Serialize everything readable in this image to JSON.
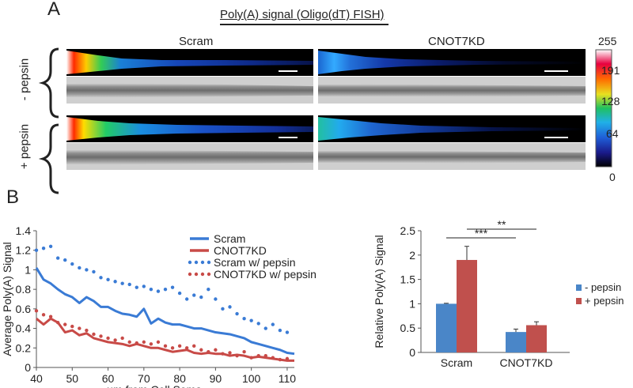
{
  "panel_a": {
    "letter": "A",
    "title": "Poly(A) signal (Oligo(dT) FISH)",
    "columns": [
      "Scram",
      "CNOT7KD"
    ],
    "rows": [
      "- pepsin",
      "+ pepsin"
    ],
    "colorbar_ticks": [
      "255",
      "191",
      "128",
      "64",
      "0"
    ]
  },
  "panel_b": {
    "letter": "B"
  },
  "chart_data": [
    {
      "type": "line",
      "title": "",
      "xlabel": "µm from Cell Soma",
      "ylabel": "Average Poly(A) Signal",
      "xlim": [
        40,
        112
      ],
      "ylim": [
        0,
        1.4
      ],
      "xticks": [
        "40",
        "50",
        "60",
        "70",
        "80",
        "90",
        "100",
        "110"
      ],
      "yticks": [
        "0",
        "0.2",
        "0.4",
        "0.6",
        "0.8",
        "1",
        "1.2",
        "1.4"
      ],
      "legend_position": "top-right",
      "series": [
        {
          "name": "Scram",
          "style": "solid",
          "color": "#3a7bd5",
          "x": [
            40,
            42,
            44,
            46,
            48,
            50,
            52,
            54,
            56,
            58,
            60,
            62,
            64,
            66,
            68,
            70,
            72,
            74,
            76,
            78,
            80,
            82,
            84,
            86,
            88,
            90,
            92,
            94,
            96,
            98,
            100,
            102,
            104,
            106,
            108,
            110,
            112
          ],
          "y": [
            1.02,
            0.9,
            0.86,
            0.8,
            0.75,
            0.72,
            0.66,
            0.72,
            0.68,
            0.62,
            0.62,
            0.58,
            0.55,
            0.54,
            0.52,
            0.6,
            0.45,
            0.5,
            0.46,
            0.44,
            0.44,
            0.42,
            0.4,
            0.4,
            0.38,
            0.36,
            0.35,
            0.34,
            0.32,
            0.3,
            0.26,
            0.24,
            0.22,
            0.2,
            0.18,
            0.15,
            0.14
          ]
        },
        {
          "name": "CNOT7KD",
          "style": "solid",
          "color": "#c84a47",
          "x": [
            40,
            42,
            44,
            46,
            48,
            50,
            52,
            54,
            56,
            58,
            60,
            62,
            64,
            66,
            68,
            70,
            72,
            74,
            76,
            78,
            80,
            82,
            84,
            86,
            88,
            90,
            92,
            94,
            96,
            98,
            100,
            102,
            104,
            106,
            108,
            110,
            112
          ],
          "y": [
            0.5,
            0.44,
            0.5,
            0.46,
            0.36,
            0.38,
            0.33,
            0.35,
            0.3,
            0.28,
            0.26,
            0.25,
            0.24,
            0.22,
            0.24,
            0.22,
            0.2,
            0.2,
            0.18,
            0.16,
            0.17,
            0.18,
            0.15,
            0.14,
            0.15,
            0.14,
            0.14,
            0.12,
            0.13,
            0.12,
            0.1,
            0.11,
            0.1,
            0.09,
            0.08,
            0.07,
            0.07
          ]
        },
        {
          "name": "Scram w/ pepsin",
          "style": "dotted",
          "color": "#3a7bd5",
          "x": [
            40,
            42,
            44,
            46,
            48,
            50,
            52,
            54,
            56,
            58,
            60,
            62,
            64,
            66,
            68,
            70,
            72,
            74,
            76,
            78,
            80,
            82,
            84,
            86,
            88,
            90,
            92,
            94,
            96,
            98,
            100,
            102,
            104,
            106,
            108,
            110
          ],
          "y": [
            1.2,
            1.22,
            1.24,
            1.12,
            1.1,
            1.06,
            1.02,
            1.0,
            0.98,
            0.92,
            0.9,
            0.88,
            0.86,
            0.85,
            0.82,
            0.83,
            0.8,
            0.78,
            0.8,
            0.82,
            0.76,
            0.7,
            0.74,
            0.72,
            0.8,
            0.7,
            0.6,
            0.62,
            0.55,
            0.5,
            0.48,
            0.45,
            0.4,
            0.44,
            0.38,
            0.36
          ]
        },
        {
          "name": "CNOT7KD w/ pepsin",
          "style": "dotted",
          "color": "#c84a47",
          "x": [
            40,
            42,
            44,
            46,
            48,
            50,
            52,
            54,
            56,
            58,
            60,
            62,
            64,
            66,
            68,
            70,
            72,
            74,
            76,
            78,
            80,
            82,
            84,
            86,
            88,
            90,
            92,
            94,
            96,
            98,
            100,
            102,
            104,
            106,
            108,
            110
          ],
          "y": [
            0.58,
            0.54,
            0.52,
            0.46,
            0.44,
            0.42,
            0.4,
            0.38,
            0.34,
            0.32,
            0.3,
            0.28,
            0.3,
            0.26,
            0.25,
            0.26,
            0.24,
            0.26,
            0.22,
            0.2,
            0.22,
            0.2,
            0.22,
            0.18,
            0.16,
            0.18,
            0.14,
            0.15,
            0.12,
            0.16,
            0.1,
            0.12,
            0.12,
            0.1,
            0.08,
            0.09
          ]
        }
      ]
    },
    {
      "type": "bar",
      "title": "",
      "xlabel": "",
      "ylabel": "Relative Poly(A) Signal",
      "categories": [
        "Scram",
        "CNOT7KD"
      ],
      "ylim": [
        0,
        2.5
      ],
      "yticks": [
        "0",
        "0.5",
        "1",
        "1.5",
        "2",
        "2.5"
      ],
      "legend_position": "right",
      "series": [
        {
          "name": "- pepsin",
          "color": "#4a86c8",
          "values": [
            1.0,
            0.42
          ],
          "errors": [
            0.01,
            0.06
          ]
        },
        {
          "name": "+ pepsin",
          "color": "#c0504d",
          "values": [
            1.9,
            0.56
          ],
          "errors": [
            0.28,
            0.07
          ]
        }
      ],
      "significance": [
        {
          "label": "***",
          "from": "Scram - pepsin",
          "to": "CNOT7KD - pepsin"
        },
        {
          "label": "**",
          "from": "Scram + pepsin",
          "to": "CNOT7KD + pepsin"
        }
      ]
    }
  ]
}
